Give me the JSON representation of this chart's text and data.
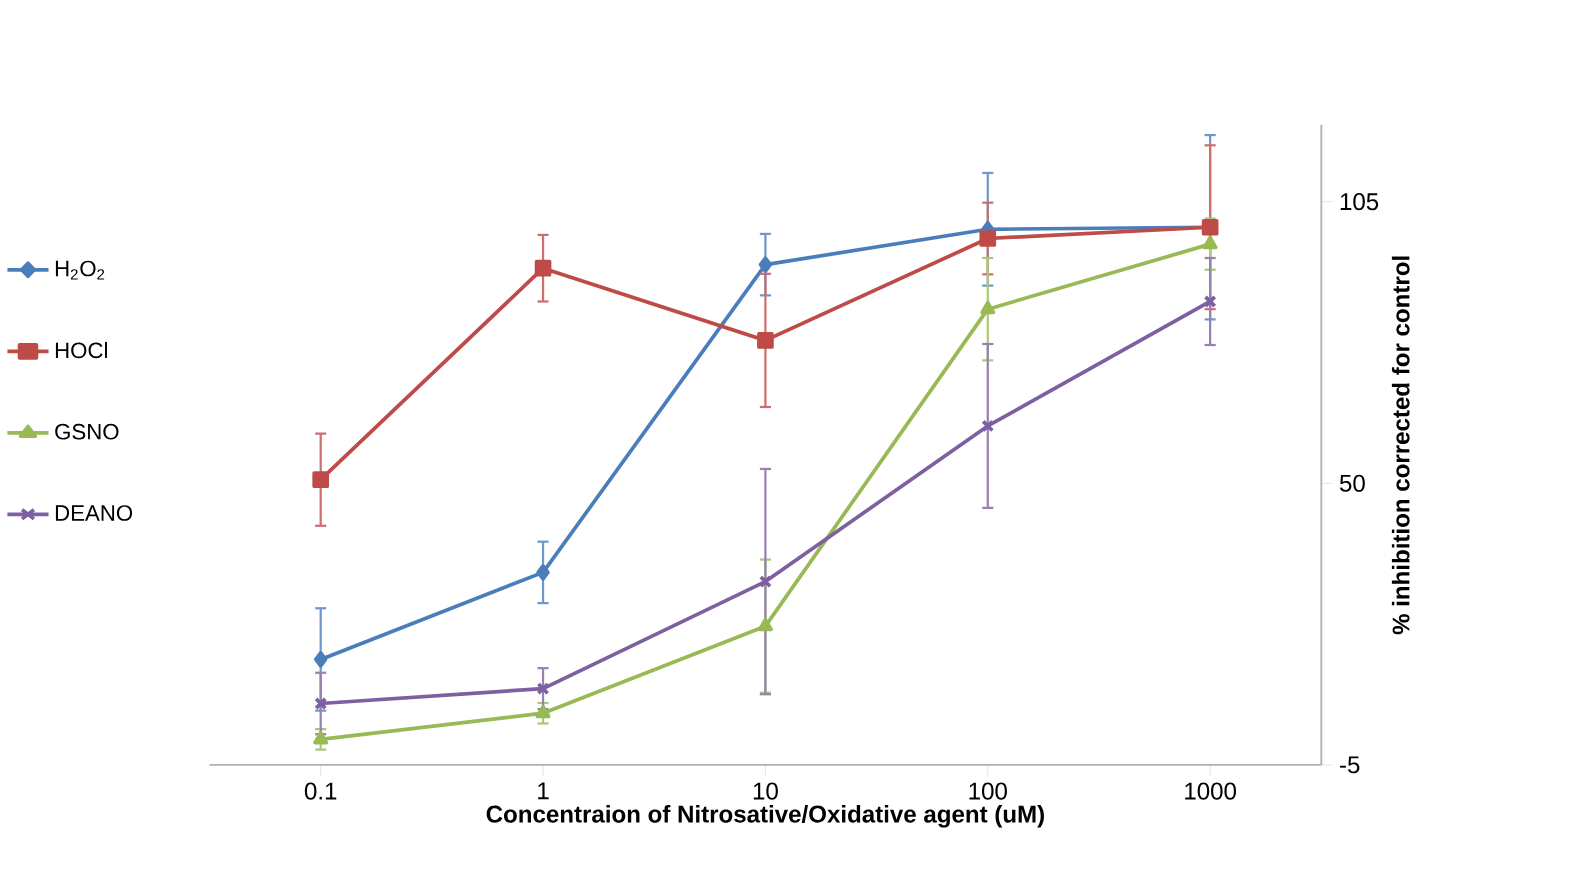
{
  "chart_data": {
    "type": "line",
    "xlabel": "Concentraion of Nitrosative/Oxidative agent (uM)",
    "ylabel": "% inhibition corrected for control",
    "categories": [
      "0.1",
      "1",
      "10",
      "100",
      "1000"
    ],
    "ylim": [
      -5,
      120
    ],
    "yticks": [
      105,
      50,
      -5
    ],
    "legend": "left",
    "grid": false,
    "line_style": "solid",
    "series": [
      {
        "name": "H$_{2}$O$_{2}$",
        "color": "#4a7ebb",
        "marker": "diamond",
        "values": [
          15.6,
          32.6,
          92.7,
          99.6,
          100
        ],
        "errors": [
          10,
          6,
          6,
          11,
          18
        ]
      },
      {
        "name": "HOCl",
        "color": "#be4b48",
        "marker": "square",
        "values": [
          50.7,
          92,
          77.9,
          97.8,
          100
        ],
        "errors": [
          9,
          6.5,
          13,
          7,
          16
        ]
      },
      {
        "name": "GSNO",
        "color": "#98b954",
        "marker": "triangle",
        "values": [
          0,
          5.1,
          22.1,
          84,
          96.7
        ],
        "errors": [
          2,
          2,
          13,
          10,
          5
        ]
      },
      {
        "name": "DEANO",
        "color": "#7d60a0",
        "marker": "cross",
        "values": [
          7,
          9.9,
          30.8,
          61.2,
          85.5
        ],
        "errors": [
          6,
          4,
          22,
          16,
          8.5
        ]
      }
    ]
  }
}
